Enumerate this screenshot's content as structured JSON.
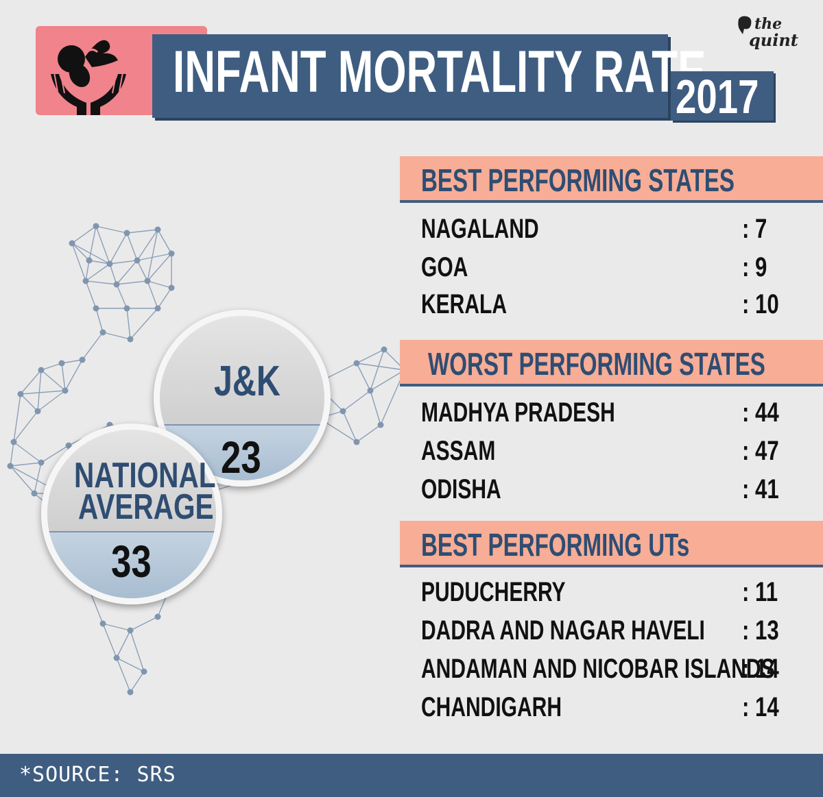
{
  "header": {
    "title": "INFANT MORTALITY RATE",
    "year": "2017",
    "brand_line1": "the",
    "brand_line2": "quint",
    "icon": "infant-in-hands-icon"
  },
  "sections": [
    {
      "title": "BEST PERFORMING STATES",
      "rows": [
        {
          "name": "NAGALAND",
          "value": ":  7"
        },
        {
          "name": "GOA",
          "value": ":  9"
        },
        {
          "name": "KERALA",
          "value": ": 10"
        }
      ]
    },
    {
      "title": "WORST  PERFORMING STATES",
      "rows": [
        {
          "name": "MADHYA PRADESH",
          "value": ": 44"
        },
        {
          "name": "ASSAM",
          "value": ": 47"
        },
        {
          "name": "ODISHA",
          "value": ": 41"
        }
      ]
    },
    {
      "title": "BEST PERFORMING UTs",
      "rows": [
        {
          "name": "PUDUCHERRY",
          "value": ": 11"
        },
        {
          "name": "DADRA AND NAGAR HAVELI",
          "value": ": 13"
        },
        {
          "name": "ANDAMAN AND NICOBAR ISLANDS",
          "value": ": 14"
        },
        {
          "name": "CHANDIGARH",
          "value": ": 14"
        }
      ]
    }
  ],
  "callouts": {
    "jk": {
      "label": "J&K",
      "value": "23"
    },
    "national": {
      "label_line1": "NATIONAL",
      "label_line2": "AVERAGE",
      "value": "33"
    }
  },
  "footer": {
    "source": "*SOURCE: SRS"
  },
  "colors": {
    "navy": "#3f5d80",
    "salmon": "#f7ad96",
    "pink": "#f0838b",
    "background": "#ebeaea"
  }
}
